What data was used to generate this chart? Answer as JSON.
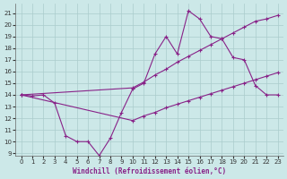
{
  "xlabel": "Windchill (Refroidissement éolien,°C)",
  "bg_color": "#cce8e8",
  "grid_color": "#aacccc",
  "line_color": "#882288",
  "xlim": [
    -0.5,
    23.5
  ],
  "ylim": [
    8.8,
    21.8
  ],
  "yticks": [
    9,
    10,
    11,
    12,
    13,
    14,
    15,
    16,
    17,
    18,
    19,
    20,
    21
  ],
  "xticks": [
    0,
    1,
    2,
    3,
    4,
    5,
    6,
    7,
    8,
    9,
    10,
    11,
    12,
    13,
    14,
    15,
    16,
    17,
    18,
    19,
    20,
    21,
    22,
    23
  ],
  "curve1": {
    "x": [
      0,
      1,
      2,
      3,
      4,
      5,
      6,
      7,
      8,
      9,
      10,
      11,
      12,
      13,
      14,
      15,
      16,
      17,
      18,
      19,
      20,
      21,
      22,
      23
    ],
    "y": [
      14,
      13.9,
      14,
      13.3,
      10.5,
      10.0,
      10.0,
      8.8,
      10.3,
      12.5,
      14.5,
      15.0,
      17.5,
      19.0,
      17.5,
      21.2,
      20.5,
      19.0,
      18.8,
      17.2,
      17.0,
      14.8,
      14.0,
      14.0
    ]
  },
  "curve2": {
    "x": [
      0,
      10,
      11,
      12,
      13,
      14,
      15,
      16,
      17,
      18,
      19,
      20,
      21,
      22,
      23
    ],
    "y": [
      14,
      14.6,
      15.1,
      15.7,
      16.2,
      16.8,
      17.3,
      17.8,
      18.3,
      18.8,
      19.3,
      19.8,
      20.3,
      20.5,
      20.8
    ]
  },
  "curve3": {
    "x": [
      0,
      10,
      11,
      12,
      13,
      14,
      15,
      16,
      17,
      18,
      19,
      20,
      21,
      22,
      23
    ],
    "y": [
      14,
      11.8,
      12.2,
      12.5,
      12.9,
      13.2,
      13.5,
      13.8,
      14.1,
      14.4,
      14.7,
      15.0,
      15.3,
      15.6,
      15.9
    ]
  }
}
